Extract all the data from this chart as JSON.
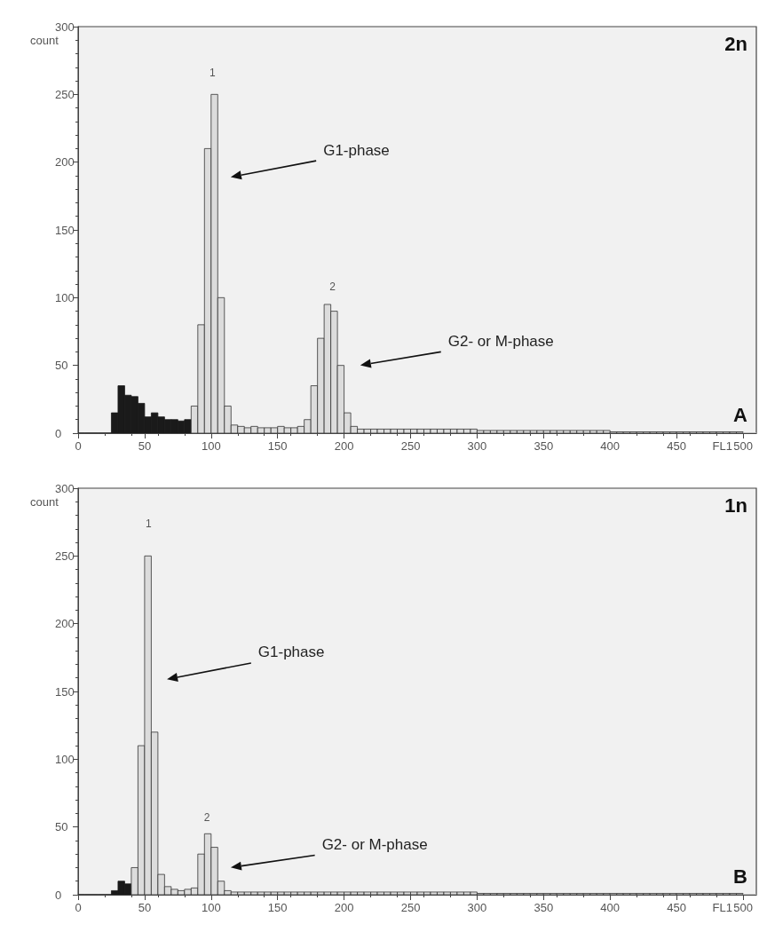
{
  "chart_data": [
    {
      "type": "histogram",
      "ylabel": "count",
      "xlabel": "FL1",
      "bins": [
        0,
        5,
        10,
        15,
        20,
        25,
        30,
        35,
        40,
        45,
        50,
        55,
        60,
        65,
        70,
        75,
        80,
        85,
        90,
        95,
        100,
        105,
        110,
        115,
        120,
        125,
        130,
        135,
        140,
        145,
        150,
        155,
        160,
        165,
        170,
        175,
        180,
        185,
        190,
        195,
        200,
        205,
        210,
        215,
        220,
        225,
        230,
        235,
        240,
        245,
        250,
        255,
        260,
        265,
        270,
        275,
        280,
        285,
        290,
        295,
        300,
        305,
        310,
        315,
        320,
        325,
        330,
        335,
        340,
        345,
        350,
        355,
        360,
        365,
        370,
        375,
        380,
        385,
        390,
        395,
        400,
        405,
        410,
        415,
        420,
        425,
        430,
        435,
        440,
        445,
        450,
        455,
        460,
        465,
        470,
        475,
        480,
        485,
        490,
        495,
        500,
        505,
        510
      ],
      "values": [
        0,
        0,
        0,
        0,
        0,
        15,
        35,
        28,
        27,
        22,
        12,
        15,
        12,
        10,
        10,
        9,
        10,
        20,
        80,
        210,
        250,
        100,
        20,
        6,
        5,
        4,
        5,
        4,
        4,
        4,
        5,
        4,
        4,
        5,
        10,
        35,
        70,
        95,
        90,
        50,
        15,
        5,
        3,
        3,
        3,
        3,
        3,
        3,
        3,
        3,
        3,
        3,
        3,
        3,
        3,
        3,
        3,
        3,
        3,
        3,
        2,
        2,
        2,
        2,
        2,
        2,
        2,
        2,
        2,
        2,
        2,
        2,
        2,
        2,
        2,
        2,
        2,
        2,
        2,
        2,
        1,
        1,
        1,
        1,
        1,
        1,
        1,
        1,
        1,
        1,
        1,
        1,
        1,
        1,
        1,
        1,
        1,
        1,
        1,
        1,
        0,
        0
      ],
      "colors": [
        "#1a1a1a",
        "#1a1a1a",
        "#1a1a1a",
        "#1a1a1a",
        "#1a1a1a",
        "#1a1a1a",
        "#1a1a1a",
        "#1a1a1a",
        "#1a1a1a",
        "#1a1a1a",
        "#1a1a1a",
        "#1a1a1a",
        "#1a1a1a",
        "#1a1a1a",
        "#1a1a1a",
        "#1a1a1a",
        "#1a1a1a",
        "#dcdcdc",
        "#dcdcdc",
        "#dcdcdc",
        "#dcdcdc",
        "#dcdcdc",
        "#dcdcdc",
        "#dcdcdc",
        "#dcdcdc",
        "#dcdcdc",
        "#dcdcdc",
        "#dcdcdc",
        "#dcdcdc",
        "#dcdcdc",
        "#dcdcdc",
        "#dcdcdc",
        "#dcdcdc",
        "#dcdcdc",
        "#dcdcdc",
        "#dcdcdc",
        "#dcdcdc",
        "#dcdcdc",
        "#dcdcdc",
        "#dcdcdc",
        "#dcdcdc",
        "#dcdcdc",
        "#dcdcdc",
        "#dcdcdc",
        "#dcdcdc",
        "#dcdcdc",
        "#dcdcdc",
        "#dcdcdc",
        "#dcdcdc",
        "#dcdcdc",
        "#dcdcdc",
        "#dcdcdc",
        "#dcdcdc",
        "#dcdcdc",
        "#dcdcdc",
        "#dcdcdc",
        "#dcdcdc",
        "#dcdcdc",
        "#dcdcdc",
        "#dcdcdc",
        "#dcdcdc",
        "#dcdcdc",
        "#dcdcdc",
        "#dcdcdc",
        "#dcdcdc",
        "#dcdcdc",
        "#dcdcdc",
        "#dcdcdc",
        "#dcdcdc",
        "#dcdcdc",
        "#dcdcdc",
        "#dcdcdc",
        "#dcdcdc",
        "#dcdcdc",
        "#dcdcdc",
        "#dcdcdc",
        "#dcdcdc",
        "#dcdcdc",
        "#dcdcdc",
        "#dcdcdc",
        "#dcdcdc",
        "#dcdcdc",
        "#dcdcdc",
        "#dcdcdc",
        "#dcdcdc",
        "#dcdcdc",
        "#dcdcdc",
        "#dcdcdc",
        "#dcdcdc",
        "#dcdcdc",
        "#dcdcdc",
        "#dcdcdc",
        "#dcdcdc",
        "#dcdcdc",
        "#dcdcdc",
        "#dcdcdc",
        "#dcdcdc",
        "#dcdcdc",
        "#dcdcdc",
        "#dcdcdc",
        "#dcdcdc",
        "#dcdcdc"
      ],
      "xlim": [
        0,
        510
      ],
      "xticks": [
        0,
        50,
        100,
        150,
        200,
        250,
        300,
        350,
        400,
        450,
        500
      ],
      "ylim": [
        0,
        300
      ],
      "yticks": [
        0,
        50,
        100,
        150,
        200,
        250,
        300
      ],
      "grid": false,
      "annotations": [
        "1",
        "2",
        "G1-phase",
        "G2- or M-phase",
        "2n",
        "A"
      ]
    },
    {
      "type": "histogram",
      "ylabel": "count",
      "xlabel": "FL1",
      "bins": [
        0,
        5,
        10,
        15,
        20,
        25,
        30,
        35,
        40,
        45,
        50,
        55,
        60,
        65,
        70,
        75,
        80,
        85,
        90,
        95,
        100,
        105,
        110,
        115,
        120,
        125,
        130,
        135,
        140,
        145,
        150,
        155,
        160,
        165,
        170,
        175,
        180,
        185,
        190,
        195,
        200,
        205,
        210,
        215,
        220,
        225,
        230,
        235,
        240,
        245,
        250,
        255,
        260,
        265,
        270,
        275,
        280,
        285,
        290,
        295,
        300,
        305,
        310,
        315,
        320,
        325,
        330,
        335,
        340,
        345,
        350,
        355,
        360,
        365,
        370,
        375,
        380,
        385,
        390,
        395,
        400,
        405,
        410,
        415,
        420,
        425,
        430,
        435,
        440,
        445,
        450,
        455,
        460,
        465,
        470,
        475,
        480,
        485,
        490,
        495,
        500,
        505,
        510
      ],
      "values": [
        0,
        0,
        0,
        0,
        0,
        3,
        10,
        8,
        20,
        110,
        250,
        120,
        15,
        6,
        4,
        3,
        4,
        5,
        30,
        45,
        35,
        10,
        3,
        2,
        2,
        2,
        2,
        2,
        2,
        2,
        2,
        2,
        2,
        2,
        2,
        2,
        2,
        2,
        2,
        2,
        2,
        2,
        2,
        2,
        2,
        2,
        2,
        2,
        2,
        2,
        2,
        2,
        2,
        2,
        2,
        2,
        2,
        2,
        2,
        2,
        1,
        1,
        1,
        1,
        1,
        1,
        1,
        1,
        1,
        1,
        1,
        1,
        1,
        1,
        1,
        1,
        1,
        1,
        1,
        1,
        1,
        1,
        1,
        1,
        1,
        1,
        1,
        1,
        1,
        1,
        1,
        1,
        1,
        1,
        1,
        1,
        1,
        1,
        1,
        1,
        0,
        0
      ],
      "colors": [
        "#1a1a1a",
        "#1a1a1a",
        "#1a1a1a",
        "#1a1a1a",
        "#1a1a1a",
        "#1a1a1a",
        "#1a1a1a",
        "#1a1a1a",
        "#dcdcdc",
        "#dcdcdc",
        "#dcdcdc",
        "#dcdcdc",
        "#dcdcdc",
        "#dcdcdc",
        "#dcdcdc",
        "#dcdcdc",
        "#dcdcdc",
        "#dcdcdc",
        "#dcdcdc",
        "#dcdcdc",
        "#dcdcdc",
        "#dcdcdc",
        "#dcdcdc",
        "#dcdcdc",
        "#dcdcdc",
        "#dcdcdc",
        "#dcdcdc",
        "#dcdcdc",
        "#dcdcdc",
        "#dcdcdc",
        "#dcdcdc",
        "#dcdcdc",
        "#dcdcdc",
        "#dcdcdc",
        "#dcdcdc",
        "#dcdcdc",
        "#dcdcdc",
        "#dcdcdc",
        "#dcdcdc",
        "#dcdcdc",
        "#dcdcdc",
        "#dcdcdc",
        "#dcdcdc",
        "#dcdcdc",
        "#dcdcdc",
        "#dcdcdc",
        "#dcdcdc",
        "#dcdcdc",
        "#dcdcdc",
        "#dcdcdc",
        "#dcdcdc",
        "#dcdcdc",
        "#dcdcdc",
        "#dcdcdc",
        "#dcdcdc",
        "#dcdcdc",
        "#dcdcdc",
        "#dcdcdc",
        "#dcdcdc",
        "#dcdcdc",
        "#dcdcdc",
        "#dcdcdc",
        "#dcdcdc",
        "#dcdcdc",
        "#dcdcdc",
        "#dcdcdc",
        "#dcdcdc",
        "#dcdcdc",
        "#dcdcdc",
        "#dcdcdc",
        "#dcdcdc",
        "#dcdcdc",
        "#dcdcdc",
        "#dcdcdc",
        "#dcdcdc",
        "#dcdcdc",
        "#dcdcdc",
        "#dcdcdc",
        "#dcdcdc",
        "#dcdcdc",
        "#dcdcdc",
        "#dcdcdc",
        "#dcdcdc",
        "#dcdcdc",
        "#dcdcdc",
        "#dcdcdc",
        "#dcdcdc",
        "#dcdcdc",
        "#dcdcdc",
        "#dcdcdc",
        "#dcdcdc",
        "#dcdcdc",
        "#dcdcdc",
        "#dcdcdc",
        "#dcdcdc",
        "#dcdcdc",
        "#dcdcdc",
        "#dcdcdc",
        "#dcdcdc",
        "#dcdcdc",
        "#dcdcdc",
        "#dcdcdc"
      ],
      "xlim": [
        0,
        510
      ],
      "xticks": [
        0,
        50,
        100,
        150,
        200,
        250,
        300,
        350,
        400,
        450,
        500
      ],
      "ylim": [
        0,
        300
      ],
      "yticks": [
        0,
        50,
        100,
        150,
        200,
        250,
        300
      ],
      "grid": false,
      "annotations": [
        "1",
        "2",
        "G1-phase",
        "G2- or M-phase",
        "1n",
        "B"
      ]
    }
  ]
}
